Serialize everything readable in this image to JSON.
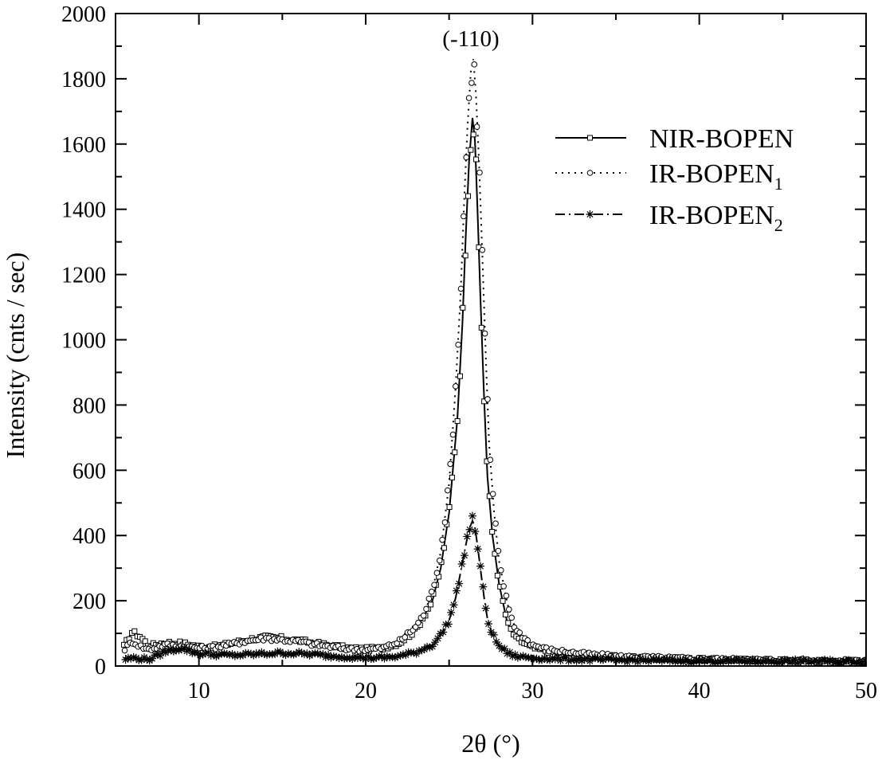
{
  "chart_data": {
    "type": "line",
    "xlabel": "2θ (°)",
    "ylabel": "Intensity (cnts / sec)",
    "xlim": [
      5,
      50
    ],
    "ylim": [
      0,
      2000
    ],
    "x_ticks": [
      "10",
      "20",
      "30",
      "40",
      "50"
    ],
    "y_ticks": [
      "0",
      "200",
      "400",
      "600",
      "800",
      "1000",
      "1200",
      "1400",
      "1600",
      "1800",
      "2000"
    ],
    "grid": false,
    "legend_position": "top-right",
    "annotations": [
      {
        "text": "(-110)",
        "x": 26.4,
        "y": 1930
      }
    ],
    "series": [
      {
        "name": "NIR-BOPEN",
        "legend_base": "NIR-BOPEN",
        "legend_sub": "",
        "line_style": "solid",
        "marker": "square",
        "points": [
          [
            5.5,
            60
          ],
          [
            6.0,
            105
          ],
          [
            6.5,
            90
          ],
          [
            7.0,
            62
          ],
          [
            8.0,
            72
          ],
          [
            9.0,
            70
          ],
          [
            10.0,
            60
          ],
          [
            11.0,
            60
          ],
          [
            12.0,
            70
          ],
          [
            13.0,
            82
          ],
          [
            14.0,
            88
          ],
          [
            15.0,
            85
          ],
          [
            16.0,
            78
          ],
          [
            17.0,
            70
          ],
          [
            18.0,
            62
          ],
          [
            19.0,
            55
          ],
          [
            20.0,
            52
          ],
          [
            21.0,
            55
          ],
          [
            22.0,
            70
          ],
          [
            23.0,
            110
          ],
          [
            24.0,
            200
          ],
          [
            24.5,
            300
          ],
          [
            25.0,
            470
          ],
          [
            25.5,
            760
          ],
          [
            25.8,
            1050
          ],
          [
            26.0,
            1320
          ],
          [
            26.2,
            1550
          ],
          [
            26.4,
            1680
          ],
          [
            26.55,
            1610
          ],
          [
            26.7,
            1400
          ],
          [
            26.9,
            1100
          ],
          [
            27.1,
            820
          ],
          [
            27.3,
            580
          ],
          [
            27.6,
            400
          ],
          [
            28.0,
            250
          ],
          [
            28.5,
            130
          ],
          [
            29.0,
            85
          ],
          [
            30.0,
            55
          ],
          [
            31.0,
            45
          ],
          [
            33.0,
            35
          ],
          [
            35.0,
            28
          ],
          [
            38.0,
            23
          ],
          [
            40.0,
            20
          ],
          [
            45.0,
            17
          ],
          [
            50.0,
            15
          ]
        ]
      },
      {
        "name": "IR-BOPEN1",
        "legend_base": "IR-BOPEN",
        "legend_sub": "1",
        "line_style": "dotted",
        "marker": "circle",
        "points": [
          [
            5.5,
            50
          ],
          [
            6.0,
            75
          ],
          [
            6.5,
            60
          ],
          [
            7.0,
            50
          ],
          [
            8.0,
            65
          ],
          [
            9.0,
            60
          ],
          [
            10.0,
            55
          ],
          [
            11.0,
            58
          ],
          [
            12.0,
            68
          ],
          [
            13.0,
            78
          ],
          [
            14.0,
            85
          ],
          [
            15.0,
            80
          ],
          [
            16.0,
            75
          ],
          [
            17.0,
            65
          ],
          [
            18.0,
            58
          ],
          [
            19.0,
            52
          ],
          [
            20.0,
            50
          ],
          [
            21.0,
            55
          ],
          [
            22.0,
            75
          ],
          [
            23.0,
            120
          ],
          [
            23.5,
            160
          ],
          [
            24.0,
            230
          ],
          [
            24.5,
            350
          ],
          [
            25.0,
            560
          ],
          [
            25.4,
            860
          ],
          [
            25.7,
            1150
          ],
          [
            25.9,
            1420
          ],
          [
            26.1,
            1650
          ],
          [
            26.3,
            1820
          ],
          [
            26.45,
            1860
          ],
          [
            26.6,
            1760
          ],
          [
            26.8,
            1540
          ],
          [
            27.0,
            1250
          ],
          [
            27.2,
            950
          ],
          [
            27.4,
            680
          ],
          [
            27.7,
            470
          ],
          [
            28.0,
            320
          ],
          [
            28.5,
            190
          ],
          [
            29.0,
            110
          ],
          [
            30.0,
            65
          ],
          [
            31.0,
            50
          ],
          [
            33.0,
            38
          ],
          [
            35.0,
            30
          ],
          [
            38.0,
            25
          ],
          [
            40.0,
            22
          ],
          [
            45.0,
            18
          ],
          [
            50.0,
            15
          ]
        ]
      },
      {
        "name": "IR-BOPEN2",
        "legend_base": "IR-BOPEN",
        "legend_sub": "2",
        "line_style": "dash-dot",
        "marker": "asterisk",
        "points": [
          [
            5.5,
            20
          ],
          [
            6.0,
            25
          ],
          [
            7.0,
            20
          ],
          [
            8.0,
            45
          ],
          [
            8.5,
            50
          ],
          [
            9.0,
            55
          ],
          [
            9.5,
            45
          ],
          [
            10.0,
            38
          ],
          [
            11.0,
            35
          ],
          [
            12.0,
            33
          ],
          [
            13.0,
            35
          ],
          [
            14.0,
            38
          ],
          [
            15.0,
            40
          ],
          [
            16.0,
            38
          ],
          [
            17.0,
            35
          ],
          [
            18.0,
            30
          ],
          [
            19.0,
            28
          ],
          [
            20.0,
            25
          ],
          [
            21.0,
            25
          ],
          [
            22.0,
            30
          ],
          [
            23.0,
            42
          ],
          [
            24.0,
            65
          ],
          [
            24.5,
            95
          ],
          [
            25.0,
            140
          ],
          [
            25.4,
            210
          ],
          [
            25.7,
            290
          ],
          [
            26.0,
            370
          ],
          [
            26.2,
            420
          ],
          [
            26.4,
            445
          ],
          [
            26.55,
            425
          ],
          [
            26.7,
            370
          ],
          [
            26.9,
            290
          ],
          [
            27.1,
            210
          ],
          [
            27.3,
            145
          ],
          [
            27.6,
            95
          ],
          [
            28.0,
            62
          ],
          [
            28.5,
            40
          ],
          [
            29.0,
            30
          ],
          [
            30.0,
            25
          ],
          [
            31.0,
            22
          ],
          [
            33.0,
            20
          ],
          [
            35.0,
            18
          ],
          [
            40.0,
            16
          ],
          [
            45.0,
            15
          ],
          [
            50.0,
            14
          ]
        ]
      }
    ]
  }
}
